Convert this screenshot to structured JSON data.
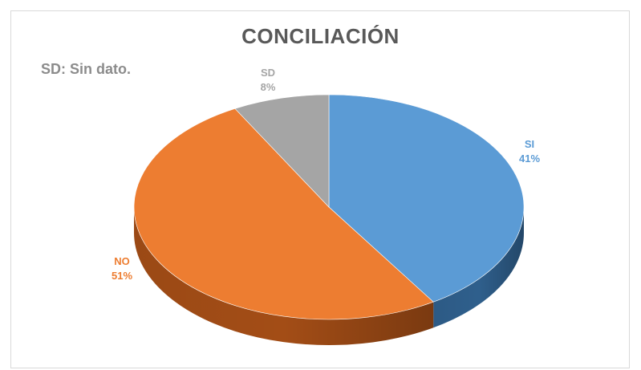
{
  "chart_data": {
    "type": "pie",
    "title": "CONCILIACIÓN",
    "note": "SD: Sin dato.",
    "three_d": true,
    "slices": [
      {
        "label": "SI",
        "value": 41,
        "pct_label": "41%",
        "color": "#5b9bd5",
        "side_color": "#2f5f8c",
        "label_color": "#5b9bd5"
      },
      {
        "label": "NO",
        "value": 51,
        "pct_label": "51%",
        "color": "#ed7d31",
        "side_color": "#a34d16",
        "label_color": "#ed7d31"
      },
      {
        "label": "SD",
        "value": 8,
        "pct_label": "8%",
        "color": "#a5a5a5",
        "side_color": "#6e6e6e",
        "label_color": "#a5a5a5"
      }
    ]
  }
}
